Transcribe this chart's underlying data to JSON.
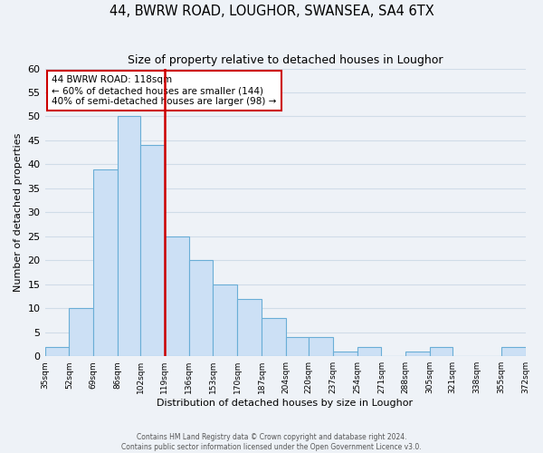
{
  "title": "44, BWRW ROAD, LOUGHOR, SWANSEA, SA4 6TX",
  "subtitle": "Size of property relative to detached houses in Loughor",
  "xlabel": "Distribution of detached houses by size in Loughor",
  "ylabel": "Number of detached properties",
  "bar_values": [
    2,
    10,
    39,
    50,
    44,
    25,
    20,
    15,
    12,
    8,
    4,
    4,
    1,
    2,
    0,
    1,
    2,
    0,
    0,
    2
  ],
  "bar_edges": [
    35,
    52,
    69,
    86,
    102,
    119,
    136,
    153,
    170,
    187,
    204,
    220,
    237,
    254,
    271,
    288,
    305,
    321,
    338,
    355,
    372
  ],
  "bar_color": "#cce0f5",
  "bar_edgecolor": "#6aaed6",
  "redline_x": 119,
  "ylim": [
    0,
    60
  ],
  "annotation_text": "44 BWRW ROAD: 118sqm\n← 60% of detached houses are smaller (144)\n40% of semi-detached houses are larger (98) →",
  "annotation_box_edgecolor": "#cc0000",
  "annotation_box_facecolor": "#ffffff",
  "redline_color": "#cc0000",
  "tick_labels": [
    "35sqm",
    "52sqm",
    "69sqm",
    "86sqm",
    "102sqm",
    "119sqm",
    "136sqm",
    "153sqm",
    "170sqm",
    "187sqm",
    "204sqm",
    "220sqm",
    "237sqm",
    "254sqm",
    "271sqm",
    "288sqm",
    "305sqm",
    "321sqm",
    "338sqm",
    "355sqm",
    "372sqm"
  ],
  "footer_line1": "Contains HM Land Registry data © Crown copyright and database right 2024.",
  "footer_line2": "Contains public sector information licensed under the Open Government Licence v3.0.",
  "grid_color": "#d0dce8",
  "background_color": "#eef2f7"
}
